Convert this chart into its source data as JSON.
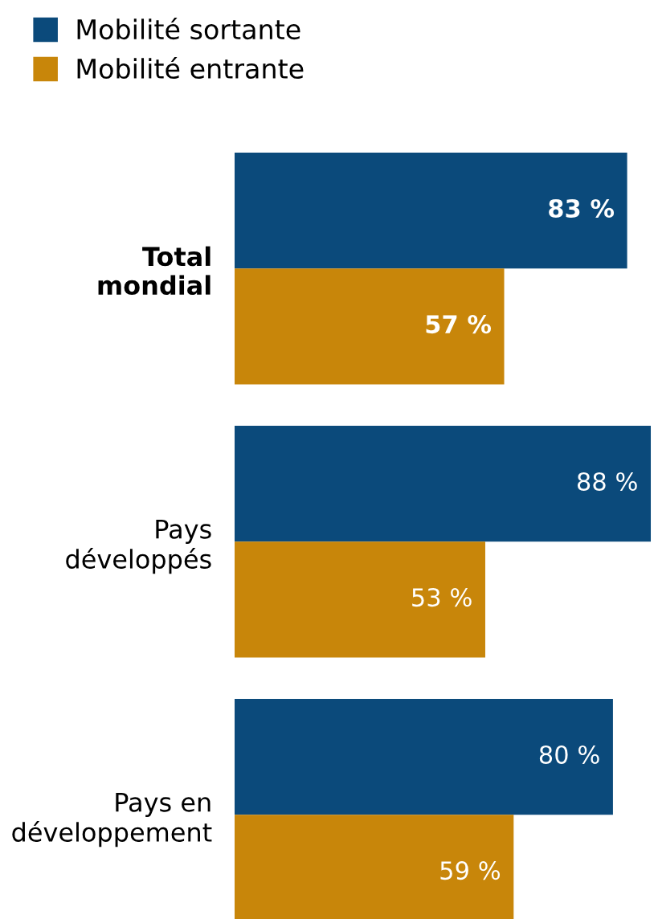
{
  "chart_data": {
    "type": "bar",
    "orientation": "horizontal",
    "categories": [
      "Total\nmondial",
      "Pays\ndéveloppés",
      "Pays en\ndéveloppement"
    ],
    "series": [
      {
        "name": "Mobilité sortante",
        "color": "#0b4a7b",
        "values": [
          83,
          88,
          80
        ],
        "value_labels": [
          "83 %",
          "88 %",
          "80 %"
        ]
      },
      {
        "name": "Mobilité entrante",
        "color": "#c8860a",
        "values": [
          57,
          53,
          59
        ],
        "value_labels": [
          "57 %",
          "53 %",
          "59 %"
        ]
      }
    ],
    "legend": "top left",
    "grid": false
  }
}
